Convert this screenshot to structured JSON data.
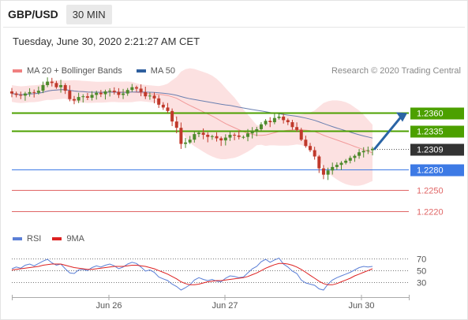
{
  "header": {
    "symbol": "GBP/USD",
    "interval": "30 MIN"
  },
  "timestamp": "Tuesday, June 30, 2020 2:21:27 AM CET",
  "legend": [
    {
      "label": "MA 20 + Bollinger Bands",
      "color": "#f08080"
    },
    {
      "label": "MA 50",
      "color": "#2f5f9e"
    }
  ],
  "credit": "Research © 2020 Trading Central",
  "rsi_legend": [
    {
      "label": "RSI",
      "color": "#5b7fd6"
    },
    {
      "label": "9MA",
      "color": "#dd2222"
    }
  ],
  "colors": {
    "resistance": "#4ca000",
    "last_price": "#333333",
    "pivot": "#3d7ae5",
    "support": "#e06666",
    "up_candle": "#4d8a2b",
    "down_candle": "#c0392b",
    "bands_fill": "#fbdcdc",
    "ma50": "#6a7fb0",
    "forecast_arrow": "#2a64a5"
  },
  "chart_data": {
    "type": "candlestick",
    "x_ticks": [
      "Jun 26",
      "Jun 27",
      "Jun 30"
    ],
    "y_range": [
      1.2195,
      1.2418
    ],
    "levels": [
      {
        "label": "1.2360",
        "value": 1.236,
        "kind": "resistance"
      },
      {
        "label": "1.2335",
        "value": 1.2335,
        "kind": "resistance"
      },
      {
        "label": "1.2309",
        "value": 1.2309,
        "kind": "last"
      },
      {
        "label": "1.2280",
        "value": 1.228,
        "kind": "pivot"
      },
      {
        "label": "1.2250",
        "value": 1.225,
        "kind": "support"
      },
      {
        "label": "1.2220",
        "value": 1.222,
        "kind": "support"
      }
    ],
    "close_series": [
      1.2388,
      1.2386,
      1.2385,
      1.2388,
      1.239,
      1.2389,
      1.2392,
      1.24,
      1.2405,
      1.2403,
      1.2397,
      1.24,
      1.2392,
      1.238,
      1.2378,
      1.2383,
      1.2384,
      1.2382,
      1.2386,
      1.2389,
      1.2387,
      1.2391,
      1.2392,
      1.239,
      1.2386,
      1.2388,
      1.2393,
      1.2397,
      1.2395,
      1.239,
      1.2384,
      1.2385,
      1.2381,
      1.2372,
      1.2368,
      1.2363,
      1.2348,
      1.2339,
      1.2316,
      1.2318,
      1.2322,
      1.233,
      1.2332,
      1.2329,
      1.2326,
      1.2327,
      1.2324,
      1.2321,
      1.2325,
      1.2329,
      1.2328,
      1.2326,
      1.2326,
      1.2331,
      1.2334,
      1.2337,
      1.2344,
      1.2349,
      1.2347,
      1.2353,
      1.2355,
      1.235,
      1.2347,
      1.234,
      1.2336,
      1.2322,
      1.2313,
      1.2307,
      1.2298,
      1.2281,
      1.2272,
      1.2278,
      1.2283,
      1.2286,
      1.2289,
      1.2292,
      1.2296,
      1.2299,
      1.2304,
      1.2306,
      1.2307,
      1.2309
    ],
    "rsi": [
      52,
      55,
      53,
      58,
      60,
      57,
      61,
      65,
      68,
      62,
      58,
      60,
      52,
      45,
      44,
      50,
      51,
      49,
      54,
      57,
      55,
      58,
      60,
      57,
      52,
      55,
      60,
      63,
      61,
      55,
      48,
      50,
      46,
      38,
      35,
      32,
      26,
      22,
      16,
      20,
      25,
      33,
      37,
      34,
      32,
      34,
      31,
      30,
      36,
      40,
      39,
      37,
      38,
      45,
      52,
      56,
      64,
      68,
      63,
      67,
      70,
      60,
      55,
      48,
      44,
      33,
      28,
      26,
      24,
      18,
      16,
      26,
      33,
      37,
      40,
      43,
      46,
      50,
      54,
      56,
      55,
      56
    ],
    "rsi_ma9": [
      50,
      51,
      52,
      53,
      54,
      55,
      56,
      58,
      59,
      60,
      60,
      60,
      58,
      56,
      54,
      53,
      52,
      51,
      51,
      52,
      53,
      54,
      55,
      56,
      56,
      56,
      57,
      58,
      58,
      57,
      56,
      54,
      52,
      49,
      46,
      43,
      39,
      35,
      30,
      27,
      25,
      25,
      26,
      28,
      30,
      31,
      32,
      32,
      33,
      34,
      35,
      36,
      37,
      39,
      42,
      45,
      49,
      53,
      56,
      59,
      61,
      61,
      60,
      58,
      55,
      51,
      46,
      41,
      36,
      31,
      27,
      25,
      25,
      27,
      30,
      33,
      36,
      40,
      43,
      46,
      49,
      52
    ],
    "rsi_levels": [
      70,
      50,
      30
    ],
    "forecast": {
      "target": 1.236
    }
  }
}
